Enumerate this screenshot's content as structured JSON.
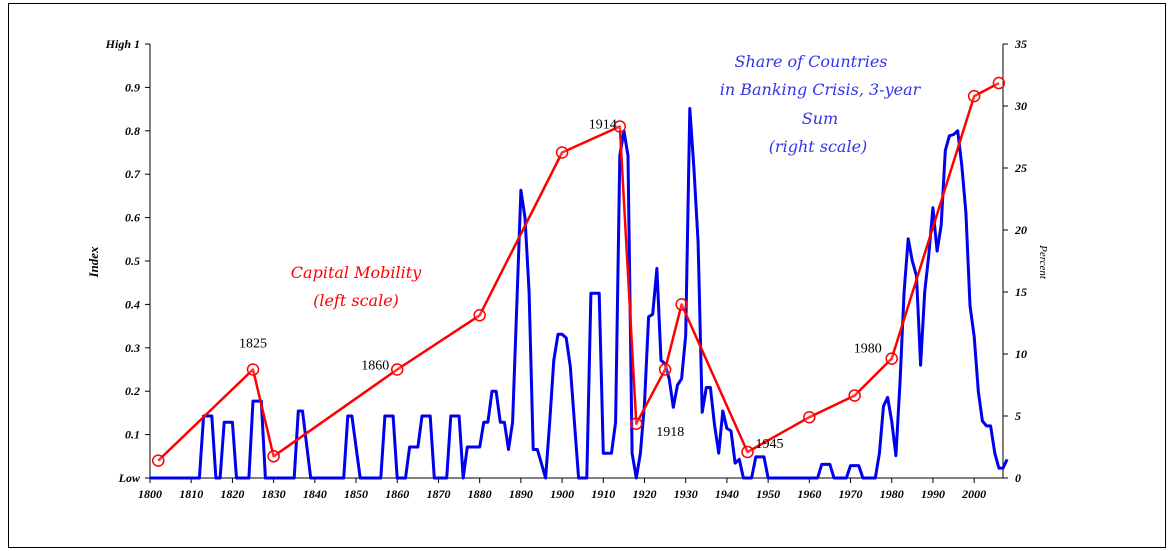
{
  "chart_data": {
    "type": "line",
    "x_axis": {
      "range": [
        1800,
        2007
      ],
      "ticks": [
        "1800",
        "1810",
        "1820",
        "1830",
        "1840",
        "1850",
        "1860",
        "1870",
        "1880",
        "1890",
        "1900",
        "1910",
        "1920",
        "1930",
        "1940",
        "1950",
        "1960",
        "1970",
        "1980",
        "1990",
        "2000"
      ]
    },
    "y_left": {
      "label": "Index",
      "range": [
        0,
        1
      ],
      "ticks": [
        {
          "value": 0,
          "label": "Low"
        },
        {
          "value": 0.1,
          "label": "0.1"
        },
        {
          "value": 0.2,
          "label": "0.2"
        },
        {
          "value": 0.3,
          "label": "0.3"
        },
        {
          "value": 0.4,
          "label": "0.4"
        },
        {
          "value": 0.5,
          "label": "0.5"
        },
        {
          "value": 0.6,
          "label": "0.6"
        },
        {
          "value": 0.7,
          "label": "0.7"
        },
        {
          "value": 0.8,
          "label": "0.8"
        },
        {
          "value": 0.9,
          "label": "0.9"
        },
        {
          "value": 1,
          "label": "High 1"
        }
      ]
    },
    "y_right": {
      "label": "Percent",
      "range": [
        0,
        35
      ],
      "ticks": [
        "0",
        "5",
        "10",
        "15",
        "20",
        "25",
        "30",
        "35"
      ]
    },
    "series": [
      {
        "name": "Capital Mobility",
        "label_lines": [
          "Capital Mobility",
          "(left scale)"
        ],
        "axis": "left",
        "color": "#ff0000",
        "points": [
          [
            1802,
            0.04
          ],
          [
            1825,
            0.25
          ],
          [
            1830,
            0.05
          ],
          [
            1860,
            0.25
          ],
          [
            1880,
            0.375
          ],
          [
            1900,
            0.75
          ],
          [
            1914,
            0.81
          ],
          [
            1918,
            0.125
          ],
          [
            1925,
            0.25
          ],
          [
            1929,
            0.4
          ],
          [
            1945,
            0.06
          ],
          [
            1960,
            0.14
          ],
          [
            1971,
            0.19
          ],
          [
            1980,
            0.275
          ],
          [
            2000,
            0.88
          ],
          [
            2006,
            0.91
          ]
        ]
      },
      {
        "name": "Share of Countries in Banking Crisis, 3-year Sum",
        "label_lines": [
          "Share of Countries",
          "in Banking Crisis, 3-year",
          "Sum",
          "(right scale)"
        ],
        "axis": "right",
        "color": "#0000ee",
        "points": [
          [
            1800,
            0
          ],
          [
            1812,
            0
          ],
          [
            1813,
            5
          ],
          [
            1815,
            5
          ],
          [
            1816,
            0
          ],
          [
            1817,
            0
          ],
          [
            1818,
            4.5
          ],
          [
            1820,
            4.5
          ],
          [
            1821,
            0
          ],
          [
            1824,
            0
          ],
          [
            1825,
            6.2
          ],
          [
            1827,
            6.2
          ],
          [
            1828,
            0
          ],
          [
            1835,
            0
          ],
          [
            1836,
            5.4
          ],
          [
            1837,
            5.4
          ],
          [
            1839,
            0
          ],
          [
            1847,
            0
          ],
          [
            1848,
            5
          ],
          [
            1849,
            5
          ],
          [
            1851,
            0
          ],
          [
            1856,
            0
          ],
          [
            1857,
            5
          ],
          [
            1859,
            5
          ],
          [
            1860,
            0
          ],
          [
            1862,
            0
          ],
          [
            1863,
            2.5
          ],
          [
            1865,
            2.5
          ],
          [
            1866,
            5
          ],
          [
            1868,
            5
          ],
          [
            1869,
            0
          ],
          [
            1872,
            0
          ],
          [
            1873,
            5
          ],
          [
            1875,
            5
          ],
          [
            1876,
            0
          ],
          [
            1877,
            2.5
          ],
          [
            1880,
            2.5
          ],
          [
            1881,
            4.5
          ],
          [
            1882,
            4.5
          ],
          [
            1883,
            7
          ],
          [
            1884,
            7
          ],
          [
            1885,
            4.5
          ],
          [
            1886,
            4.5
          ],
          [
            1887,
            2.3
          ],
          [
            1888,
            4.5
          ],
          [
            1890,
            23.2
          ],
          [
            1891,
            21
          ],
          [
            1892,
            15
          ],
          [
            1893,
            2.3
          ],
          [
            1894,
            2.3
          ],
          [
            1896,
            0
          ],
          [
            1897,
            4.5
          ],
          [
            1898,
            9.5
          ],
          [
            1899,
            11.6
          ],
          [
            1900,
            11.6
          ],
          [
            1901,
            11.3
          ],
          [
            1902,
            9
          ],
          [
            1903,
            4.5
          ],
          [
            1904,
            0
          ],
          [
            1906,
            0
          ],
          [
            1907,
            14.9
          ],
          [
            1909,
            14.9
          ],
          [
            1910,
            2
          ],
          [
            1912,
            2
          ],
          [
            1913,
            4.5
          ],
          [
            1914,
            26
          ],
          [
            1915,
            28
          ],
          [
            1916,
            26
          ],
          [
            1917,
            2
          ],
          [
            1918,
            0
          ],
          [
            1919,
            2
          ],
          [
            1920,
            6
          ],
          [
            1921,
            13
          ],
          [
            1922,
            13.2
          ],
          [
            1923,
            16.9
          ],
          [
            1924,
            9.5
          ],
          [
            1925,
            9.2
          ],
          [
            1926,
            8
          ],
          [
            1927,
            5.7
          ],
          [
            1928,
            7.5
          ],
          [
            1929,
            8
          ],
          [
            1930,
            11.5
          ],
          [
            1931,
            29.8
          ],
          [
            1932,
            25
          ],
          [
            1933,
            19
          ],
          [
            1934,
            5.3
          ],
          [
            1935,
            7.3
          ],
          [
            1936,
            7.3
          ],
          [
            1937,
            4.3
          ],
          [
            1938,
            2
          ],
          [
            1939,
            5.4
          ],
          [
            1940,
            4
          ],
          [
            1941,
            3.8
          ],
          [
            1942,
            1.2
          ],
          [
            1943,
            1.5
          ],
          [
            1944,
            0
          ],
          [
            1946,
            0
          ],
          [
            1947,
            1.7
          ],
          [
            1949,
            1.7
          ],
          [
            1950,
            0
          ],
          [
            1962,
            0
          ],
          [
            1963,
            1.1
          ],
          [
            1965,
            1.1
          ],
          [
            1966,
            0
          ],
          [
            1969,
            0
          ],
          [
            1970,
            1
          ],
          [
            1972,
            1
          ],
          [
            1973,
            0
          ],
          [
            1976,
            0
          ],
          [
            1977,
            2
          ],
          [
            1978,
            5.8
          ],
          [
            1979,
            6.5
          ],
          [
            1980,
            4.6
          ],
          [
            1981,
            1.8
          ],
          [
            1982,
            7.7
          ],
          [
            1983,
            15
          ],
          [
            1984,
            19.3
          ],
          [
            1985,
            17.5
          ],
          [
            1986,
            16.3
          ],
          [
            1987,
            9.1
          ],
          [
            1988,
            15
          ],
          [
            1989,
            18
          ],
          [
            1990,
            21.8
          ],
          [
            1991,
            18.3
          ],
          [
            1992,
            20.4
          ],
          [
            1993,
            26.4
          ],
          [
            1994,
            27.6
          ],
          [
            1995,
            27.7
          ],
          [
            1996,
            28
          ],
          [
            1997,
            25.2
          ],
          [
            1998,
            21.4
          ],
          [
            1999,
            13.9
          ],
          [
            2000,
            11.4
          ],
          [
            2001,
            7
          ],
          [
            2002,
            4.6
          ],
          [
            2003,
            4.2
          ],
          [
            2004,
            4.2
          ],
          [
            2005,
            2
          ],
          [
            2006,
            0.8
          ],
          [
            2007,
            0.8
          ],
          [
            2008,
            1.5
          ]
        ]
      }
    ],
    "annotations": [
      {
        "text": "1825",
        "x": 1825,
        "y": 0.25
      },
      {
        "text": "1860",
        "x": 1860,
        "y": 0.25
      },
      {
        "text": "1914",
        "x": 1914,
        "y": 0.81
      },
      {
        "text": "1918",
        "x": 1918,
        "y": 0.125
      },
      {
        "text": "1945",
        "x": 1945,
        "y": 0.06
      },
      {
        "text": "1980",
        "x": 1980,
        "y": 0.275
      }
    ],
    "grid": false
  }
}
